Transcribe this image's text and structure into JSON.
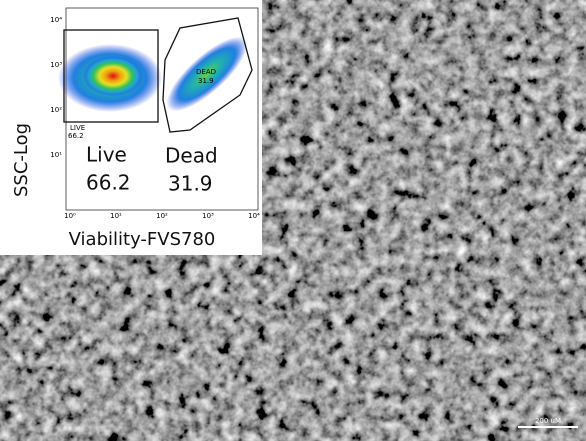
{
  "inset": {
    "y_axis_label": "SSC-Log",
    "x_axis_label": "Viability-FVS780",
    "x_ticks": [
      "10⁰",
      "10¹",
      "10²",
      "10³",
      "10⁴"
    ],
    "y_ticks": [
      "10⁴",
      "10³",
      "10²",
      "10¹"
    ],
    "gates": [
      {
        "label": "LIVE",
        "value": "66.2"
      },
      {
        "label": "DEAD",
        "value": "31.9"
      }
    ],
    "populations": [
      {
        "label": "Live",
        "value": "66.2"
      },
      {
        "label": "Dead",
        "value": "31.9"
      }
    ]
  },
  "scale_bar": {
    "label": "200 uM"
  }
}
